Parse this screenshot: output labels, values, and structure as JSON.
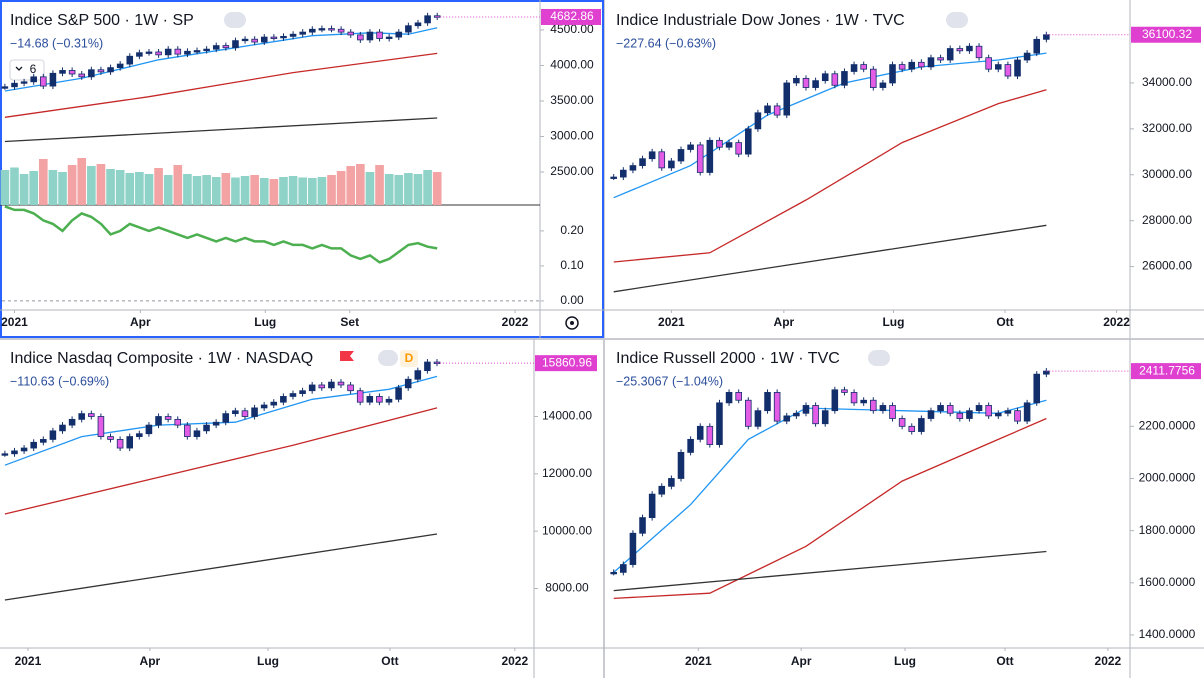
{
  "chart_data": [
    {
      "type": "candlestick",
      "title": "Indice S&P 500 · 1W · SP",
      "change": "−14.68 (−0.31%)",
      "badge": "6",
      "up_color": "#132f6b",
      "down_color": "#e35ce6",
      "values": [
        3700,
        3750,
        3770,
        3840,
        3710,
        3890,
        3930,
        3880,
        3840,
        3940,
        3910,
        3970,
        4020,
        4130,
        4180,
        4190,
        4150,
        4230,
        4160,
        4200,
        4210,
        4230,
        4280,
        4250,
        4350,
        4370,
        4330,
        4400,
        4390,
        4410,
        4440,
        4470,
        4510,
        4520,
        4510,
        4470,
        4430,
        4360,
        4470,
        4380,
        4400,
        4470,
        4560,
        4600,
        4700,
        4682.86
      ],
      "ylim": [
        2035,
        4894
      ],
      "yticks": [
        {
          "value": 4500,
          "label": "4500.00"
        },
        {
          "value": 4000,
          "label": "4000.00"
        },
        {
          "value": 3500,
          "label": "3500.00"
        },
        {
          "value": 3000,
          "label": "3000.00"
        },
        {
          "value": 2500,
          "label": "2500.00"
        }
      ],
      "xlim": [
        -0.3,
        55.7
      ],
      "xticks": [
        {
          "value": 1.0,
          "label": "2021"
        },
        {
          "value": 14.1,
          "label": "Apr"
        },
        {
          "value": 27.1,
          "label": "Lug"
        },
        {
          "value": 35.9,
          "label": "Set"
        },
        {
          "value": 53.1,
          "label": "2022"
        }
      ],
      "lines": [
        {
          "color": "#2196f3",
          "x": [
            0,
            8,
            16,
            24,
            32,
            38,
            42,
            45
          ],
          "values": [
            3640,
            3820,
            4080,
            4250,
            4420,
            4460,
            4440,
            4530
          ]
        },
        {
          "color": "#c62828",
          "x": [
            0,
            15,
            30,
            45
          ],
          "values": [
            3270,
            3560,
            3900,
            4170
          ]
        },
        {
          "color": "#333333",
          "x": [
            0,
            45
          ],
          "values": [
            2930,
            3260
          ]
        }
      ],
      "volume": {
        "up_color": "#8fd3c8",
        "down_color": "#f3a3a3",
        "values": [
          70,
          75,
          62,
          68,
          92,
          70,
          66,
          80,
          94,
          78,
          82,
          72,
          70,
          64,
          66,
          62,
          74,
          60,
          80,
          62,
          58,
          60,
          56,
          64,
          55,
          58,
          60,
          54,
          52,
          56,
          58,
          55,
          54,
          56,
          60,
          68,
          78,
          82,
          66,
          80,
          62,
          60,
          64,
          62,
          70,
          66
        ]
      },
      "indicator": {
        "color": "#4caf50",
        "values": [
          0.27,
          0.26,
          0.26,
          0.25,
          0.23,
          0.22,
          0.2,
          0.23,
          0.25,
          0.24,
          0.22,
          0.19,
          0.2,
          0.22,
          0.21,
          0.2,
          0.21,
          0.2,
          0.19,
          0.18,
          0.19,
          0.18,
          0.17,
          0.18,
          0.17,
          0.18,
          0.17,
          0.17,
          0.16,
          0.17,
          0.16,
          0.16,
          0.15,
          0.16,
          0.15,
          0.15,
          0.13,
          0.12,
          0.13,
          0.11,
          0.12,
          0.14,
          0.16,
          0.165,
          0.155,
          0.15
        ],
        "ylim": [
          -0.026,
          0.274
        ],
        "yticks": [
          {
            "value": 0.2,
            "label": "0.20"
          },
          {
            "value": 0.1,
            "label": "0.10"
          },
          {
            "value": 0,
            "label": "0.00"
          }
        ]
      }
    },
    {
      "type": "candlestick",
      "title": "Indice Industriale Dow Jones · 1W · TVC",
      "change": "−227.64 (−0.63%)",
      "up_color": "#132f6b",
      "down_color": "#e35ce6",
      "values": [
        29900,
        30200,
        30400,
        30700,
        31000,
        30300,
        30600,
        31100,
        31300,
        30100,
        31500,
        31200,
        31400,
        30900,
        32000,
        32700,
        33000,
        32600,
        34000,
        34200,
        33800,
        34100,
        34400,
        33900,
        34500,
        34800,
        34600,
        33800,
        34000,
        34800,
        34600,
        34900,
        34700,
        35100,
        35000,
        35500,
        35400,
        35600,
        35100,
        34600,
        34800,
        34300,
        35000,
        35300,
        35900,
        36100.32
      ],
      "ylim": [
        24108,
        37527
      ],
      "yticks": [
        {
          "value": 34000,
          "label": "34000.00"
        },
        {
          "value": 32000,
          "label": "32000.00"
        },
        {
          "value": 30000,
          "label": "30000.00"
        },
        {
          "value": 28000,
          "label": "28000.00"
        },
        {
          "value": 26000,
          "label": "26000.00"
        }
      ],
      "xlim": [
        -0.8,
        53.7
      ],
      "xticks": [
        {
          "value": 6.0,
          "label": "2021"
        },
        {
          "value": 17.7,
          "label": "Apr"
        },
        {
          "value": 29.1,
          "label": "Lug"
        },
        {
          "value": 40.7,
          "label": "Ott"
        },
        {
          "value": 52.3,
          "label": "2022"
        }
      ],
      "lines": [
        {
          "color": "#2196f3",
          "x": [
            0,
            8,
            16,
            24,
            32,
            40,
            45
          ],
          "values": [
            29000,
            30400,
            32600,
            34000,
            34700,
            35000,
            35300
          ]
        },
        {
          "color": "#c62828",
          "x": [
            0,
            10,
            20,
            30,
            40,
            45
          ],
          "values": [
            26200,
            26600,
            28900,
            31400,
            33100,
            33700
          ]
        },
        {
          "color": "#333333",
          "x": [
            0,
            45
          ],
          "values": [
            24900,
            27800
          ]
        }
      ]
    },
    {
      "type": "candlestick",
      "title": "Indice Nasdaq Composite · 1W · NASDAQ",
      "change": "−110.63 (−0.69%)",
      "flag": "D",
      "up_color": "#132f6b",
      "down_color": "#e35ce6",
      "values": [
        12700,
        12800,
        12900,
        13100,
        13200,
        13500,
        13700,
        13900,
        14100,
        14000,
        13300,
        13200,
        12900,
        13300,
        13400,
        13700,
        14000,
        13900,
        13700,
        13300,
        13500,
        13700,
        13800,
        14100,
        14200,
        14000,
        14300,
        14400,
        14500,
        14700,
        14800,
        14900,
        15100,
        15000,
        15200,
        15100,
        14900,
        14500,
        14700,
        14500,
        14600,
        15000,
        15300,
        15600,
        15900,
        15860.96
      ],
      "ylim": [
        5924,
        16669
      ],
      "yticks": [
        {
          "value": 14000,
          "label": "14000.00"
        },
        {
          "value": 12000,
          "label": "12000.00"
        },
        {
          "value": 10000,
          "label": "10000.00"
        },
        {
          "value": 8000,
          "label": "8000.00"
        }
      ],
      "xlim": [
        -0.3,
        55.1
      ],
      "xticks": [
        {
          "value": 2.4,
          "label": "2021"
        },
        {
          "value": 15.1,
          "label": "Apr"
        },
        {
          "value": 27.4,
          "label": "Lug"
        },
        {
          "value": 40.1,
          "label": "Ott"
        },
        {
          "value": 53.1,
          "label": "2022"
        }
      ],
      "lines": [
        {
          "color": "#2196f3",
          "x": [
            0,
            8,
            16,
            24,
            32,
            40,
            45
          ],
          "values": [
            12300,
            13300,
            13700,
            13800,
            14600,
            14950,
            15400
          ]
        },
        {
          "color": "#c62828",
          "x": [
            0,
            15,
            30,
            45
          ],
          "values": [
            10600,
            11800,
            13000,
            14300
          ]
        },
        {
          "color": "#333333",
          "x": [
            0,
            45
          ],
          "values": [
            7600,
            9900
          ]
        }
      ]
    },
    {
      "type": "candlestick",
      "title": "Indice Russell 2000 · 1W · TVC",
      "change": "−25.3067 (−1.04%)",
      "up_color": "#132f6b",
      "down_color": "#e35ce6",
      "values": [
        1640,
        1670,
        1790,
        1850,
        1940,
        1970,
        2000,
        2100,
        2150,
        2200,
        2130,
        2290,
        2330,
        2300,
        2200,
        2260,
        2330,
        2220,
        2240,
        2250,
        2280,
        2210,
        2260,
        2340,
        2330,
        2290,
        2300,
        2260,
        2280,
        2230,
        2200,
        2180,
        2230,
        2260,
        2280,
        2250,
        2230,
        2260,
        2280,
        2240,
        2250,
        2260,
        2220,
        2290,
        2400,
        2411.7756
      ],
      "ylim": [
        1350,
        2531
      ],
      "yticks": [
        {
          "value": 2200,
          "label": "2200.0000"
        },
        {
          "value": 2000,
          "label": "2000.0000"
        },
        {
          "value": 1800,
          "label": "1800.0000"
        },
        {
          "value": 1600,
          "label": "1600.0000"
        },
        {
          "value": 1400,
          "label": "1400.0000"
        }
      ],
      "xlim": [
        -0.8,
        53.7
      ],
      "xticks": [
        {
          "value": 8.8,
          "label": "2021"
        },
        {
          "value": 19.5,
          "label": "Apr"
        },
        {
          "value": 30.3,
          "label": "Lug"
        },
        {
          "value": 40.7,
          "label": "Ott"
        },
        {
          "value": 51.4,
          "label": "2022"
        }
      ],
      "lines": [
        {
          "color": "#2196f3",
          "x": [
            0,
            8,
            14,
            20,
            30,
            40,
            45
          ],
          "values": [
            1640,
            1900,
            2150,
            2270,
            2260,
            2250,
            2300
          ]
        },
        {
          "color": "#c62828",
          "x": [
            0,
            10,
            20,
            30,
            40,
            45
          ],
          "values": [
            1540,
            1560,
            1740,
            1990,
            2150,
            2230
          ]
        },
        {
          "color": "#333333",
          "x": [
            0,
            45
          ],
          "values": [
            1570,
            1720
          ]
        }
      ]
    }
  ]
}
